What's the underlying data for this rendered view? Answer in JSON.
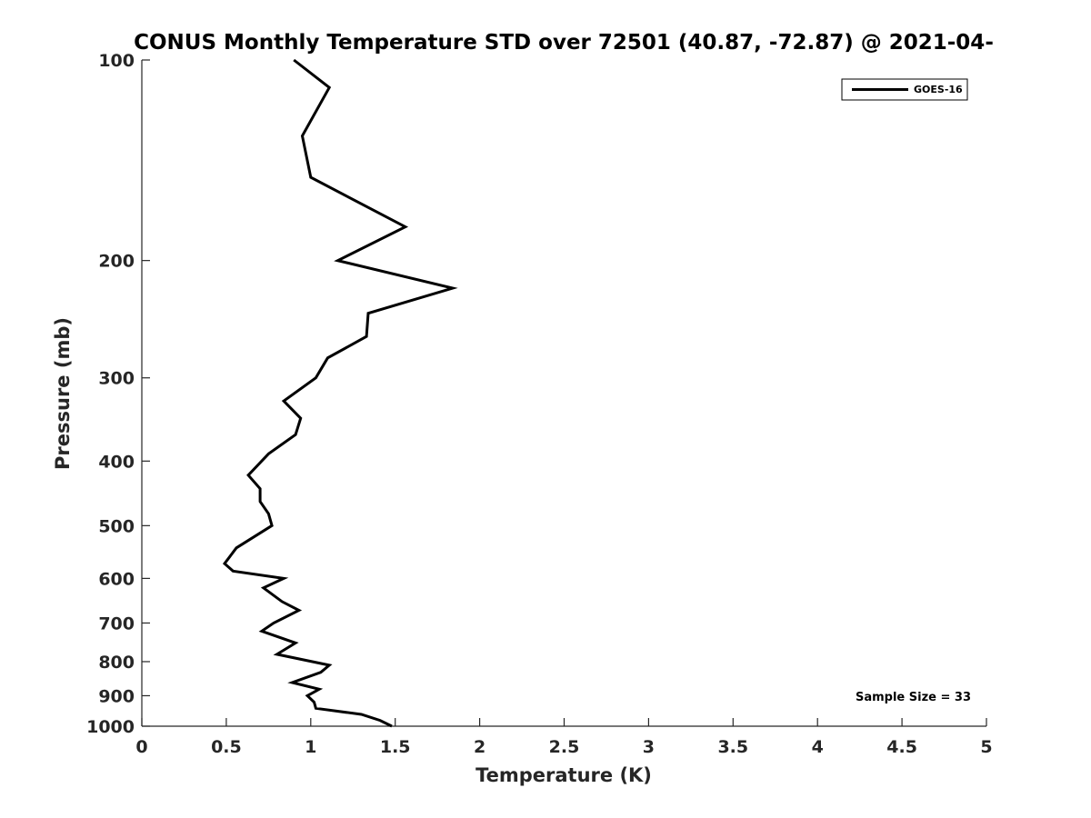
{
  "chart_data": {
    "type": "line",
    "title": "CONUS Monthly Temperature STD over 72501 (40.87, -72.87) @ 2021-04-",
    "xlabel": "Temperature (K)",
    "ylabel": "Pressure (mb)",
    "xlim": [
      0,
      5
    ],
    "ylim": [
      100,
      1000
    ],
    "y_scale": "log",
    "y_reversed": true,
    "x_ticks": [
      "0",
      "0.5",
      "1",
      "1.5",
      "2",
      "2.5",
      "3",
      "3.5",
      "4",
      "4.5",
      "5"
    ],
    "y_ticks": [
      "100",
      "200",
      "300",
      "400",
      "500",
      "600",
      "700",
      "800",
      "900",
      "1000"
    ],
    "grid": false,
    "legend_position": "top-right",
    "annotation": "Sample Size = 33",
    "series": [
      {
        "name": "GOES-16",
        "color": "#000000",
        "x": [
          0.9,
          1.11,
          0.95,
          1.0,
          1.56,
          1.16,
          1.84,
          1.34,
          1.33,
          1.1,
          1.03,
          0.84,
          0.94,
          0.91,
          0.75,
          0.63,
          0.7,
          0.7,
          0.75,
          0.77,
          0.56,
          0.49,
          0.54,
          0.84,
          0.72,
          0.83,
          0.93,
          0.78,
          0.71,
          0.91,
          0.8,
          1.11,
          1.06,
          0.89,
          1.05,
          0.98,
          1.02,
          1.03,
          1.3,
          1.41,
          1.48
        ],
        "y": [
          100,
          110,
          130,
          150,
          178,
          200,
          220,
          240,
          260,
          280,
          300,
          325,
          345,
          365,
          390,
          420,
          440,
          460,
          480,
          500,
          540,
          570,
          585,
          600,
          620,
          650,
          670,
          700,
          720,
          750,
          780,
          810,
          830,
          860,
          880,
          900,
          920,
          940,
          960,
          980,
          1000
        ]
      }
    ]
  }
}
